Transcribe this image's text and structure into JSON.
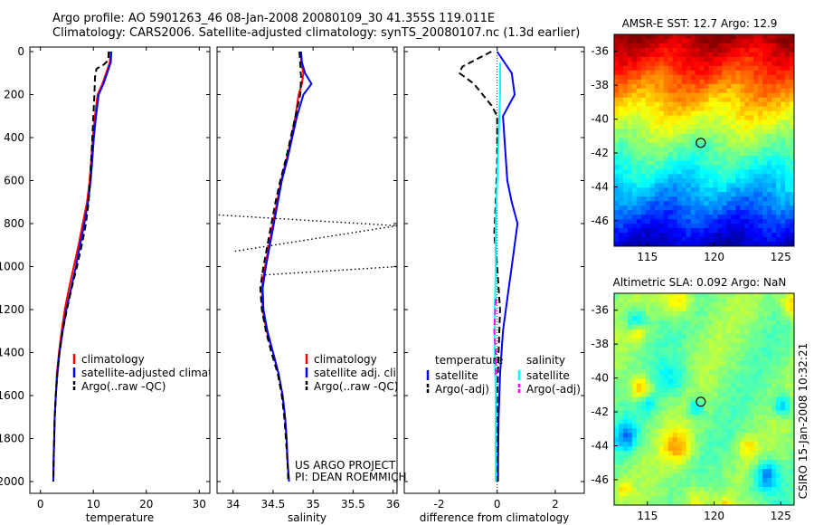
{
  "figure": {
    "title_line1": "Argo profile: AO 5901263_46 08-Jan-2008 20080109_30 41.355S 119.011E",
    "title_line2": "Climatology: CARS2006. Satellite-adjusted climatology: synTS_20080107.nc (1.3d earlier)",
    "side_label": "CSIRO 15-Jan-2008 10:32:21",
    "credit_line1": "US ARGO PROJECT",
    "credit_line2": "PI: DEAN ROEMMICH"
  },
  "colors": {
    "climatology": "#ff0000",
    "satellite": "#0000ff",
    "argo": "#000000",
    "satellite_diff_salinity": "#00ffff",
    "argo_diff_salinity": "#ff00ff"
  },
  "chart_data": [
    {
      "id": "temperature",
      "type": "line",
      "xlabel": "temperature",
      "xlim": [
        -2,
        32
      ],
      "xticks": [
        0,
        10,
        20,
        30
      ],
      "ylim": [
        0,
        2050
      ],
      "yticks": [
        0,
        200,
        400,
        600,
        800,
        1000,
        1200,
        1400,
        1600,
        1800,
        2000
      ],
      "reversed_y": true,
      "legend": {
        "placement": "lower-right",
        "entries": [
          "climatology",
          "satellite-adjusted climatology",
          "Argo(..raw -QC)"
        ]
      },
      "series": [
        {
          "name": "climatology",
          "color": "#ff0000",
          "dash": "solid",
          "points": [
            [
              13.2,
              0
            ],
            [
              13.1,
              50
            ],
            [
              12.4,
              100
            ],
            [
              11.7,
              150
            ],
            [
              10.8,
              200
            ],
            [
              10.3,
              300
            ],
            [
              9.9,
              400
            ],
            [
              9.6,
              500
            ],
            [
              9.3,
              600
            ],
            [
              8.8,
              700
            ],
            [
              8.0,
              800
            ],
            [
              7.2,
              900
            ],
            [
              6.3,
              1000
            ],
            [
              5.4,
              1100
            ],
            [
              4.6,
              1200
            ],
            [
              4.0,
              1300
            ],
            [
              3.5,
              1400
            ],
            [
              3.1,
              1500
            ],
            [
              2.9,
              1600
            ],
            [
              2.7,
              1700
            ],
            [
              2.6,
              1800
            ],
            [
              2.5,
              1900
            ],
            [
              2.45,
              2000
            ]
          ]
        },
        {
          "name": "satellite-adjusted climatology",
          "color": "#0000ff",
          "dash": "solid",
          "points": [
            [
              13.4,
              0
            ],
            [
              13.3,
              50
            ],
            [
              12.6,
              100
            ],
            [
              11.9,
              150
            ],
            [
              11.0,
              200
            ],
            [
              10.5,
              300
            ],
            [
              10.1,
              400
            ],
            [
              9.8,
              500
            ],
            [
              9.5,
              600
            ],
            [
              9.0,
              700
            ],
            [
              8.3,
              800
            ],
            [
              7.5,
              900
            ],
            [
              6.7,
              1000
            ],
            [
              5.8,
              1100
            ],
            [
              4.9,
              1200
            ],
            [
              4.2,
              1300
            ],
            [
              3.6,
              1400
            ],
            [
              3.2,
              1500
            ],
            [
              2.9,
              1600
            ],
            [
              2.7,
              1700
            ],
            [
              2.6,
              1800
            ],
            [
              2.5,
              1900
            ],
            [
              2.45,
              2000
            ]
          ]
        },
        {
          "name": "Argo(..raw -QC)",
          "color": "#000000",
          "dash": "dashed",
          "points": [
            [
              12.9,
              0
            ],
            [
              12.8,
              40
            ],
            [
              12.0,
              60
            ],
            [
              10.6,
              80
            ],
            [
              10.3,
              120
            ],
            [
              10.2,
              200
            ],
            [
              10.0,
              300
            ],
            [
              9.8,
              400
            ],
            [
              9.6,
              500
            ],
            [
              9.4,
              600
            ],
            [
              9.1,
              700
            ],
            [
              8.6,
              800
            ],
            [
              7.8,
              900
            ],
            [
              6.9,
              1000
            ],
            [
              5.9,
              1100
            ],
            [
              5.0,
              1200
            ],
            [
              4.2,
              1300
            ],
            [
              3.6,
              1400
            ],
            [
              3.2,
              1500
            ],
            [
              2.9,
              1600
            ],
            [
              2.7,
              1700
            ],
            [
              2.6,
              1800
            ],
            [
              2.5,
              1900
            ],
            [
              2.45,
              2000
            ]
          ]
        }
      ]
    },
    {
      "id": "salinity",
      "type": "line",
      "xlabel": "salinity",
      "xlim": [
        33.8,
        36.05
      ],
      "xticks": [
        34,
        34.5,
        35,
        35.5,
        36
      ],
      "ylim": [
        0,
        2050
      ],
      "reversed_y": true,
      "legend": {
        "placement": "lower-right",
        "entries": [
          "climatology",
          "satellite adj. clim.",
          "Argo(..raw -QC)"
        ]
      },
      "series": [
        {
          "name": "climatology",
          "color": "#ff0000",
          "dash": "solid",
          "points": [
            [
              34.85,
              0
            ],
            [
              34.85,
              50
            ],
            [
              34.88,
              100
            ],
            [
              34.86,
              150
            ],
            [
              34.82,
              200
            ],
            [
              34.78,
              300
            ],
            [
              34.73,
              400
            ],
            [
              34.67,
              500
            ],
            [
              34.6,
              600
            ],
            [
              34.55,
              700
            ],
            [
              34.5,
              800
            ],
            [
              34.45,
              900
            ],
            [
              34.4,
              1000
            ],
            [
              34.36,
              1100
            ],
            [
              34.37,
              1200
            ],
            [
              34.42,
              1300
            ],
            [
              34.5,
              1400
            ],
            [
              34.57,
              1500
            ],
            [
              34.62,
              1600
            ],
            [
              34.65,
              1700
            ],
            [
              34.67,
              1800
            ],
            [
              34.68,
              1900
            ],
            [
              34.7,
              2000
            ]
          ]
        },
        {
          "name": "satellite adj. clim.",
          "color": "#0000ff",
          "dash": "solid",
          "points": [
            [
              34.85,
              0
            ],
            [
              34.86,
              50
            ],
            [
              34.9,
              100
            ],
            [
              34.98,
              150
            ],
            [
              34.88,
              200
            ],
            [
              34.8,
              300
            ],
            [
              34.74,
              400
            ],
            [
              34.68,
              500
            ],
            [
              34.61,
              600
            ],
            [
              34.56,
              700
            ],
            [
              34.51,
              800
            ],
            [
              34.46,
              900
            ],
            [
              34.41,
              1000
            ],
            [
              34.37,
              1100
            ],
            [
              34.38,
              1200
            ],
            [
              34.43,
              1300
            ],
            [
              34.5,
              1400
            ],
            [
              34.57,
              1500
            ],
            [
              34.62,
              1600
            ],
            [
              34.65,
              1700
            ],
            [
              34.67,
              1800
            ],
            [
              34.68,
              1900
            ],
            [
              34.7,
              2000
            ]
          ]
        },
        {
          "name": "Argo(..raw -QC)",
          "color": "#000000",
          "dash": "dashed",
          "points": [
            [
              34.83,
              0
            ],
            [
              34.84,
              60
            ],
            [
              34.85,
              120
            ],
            [
              34.84,
              200
            ],
            [
              34.78,
              300
            ],
            [
              34.72,
              400
            ],
            [
              34.66,
              500
            ],
            [
              34.59,
              600
            ],
            [
              34.53,
              700
            ],
            [
              34.48,
              800
            ],
            [
              34.43,
              900
            ],
            [
              34.38,
              1000
            ],
            [
              34.34,
              1100
            ],
            [
              34.36,
              1200
            ],
            [
              34.41,
              1300
            ],
            [
              34.48,
              1400
            ],
            [
              34.56,
              1500
            ],
            [
              34.61,
              1600
            ],
            [
              34.64,
              1700
            ],
            [
              34.66,
              1800
            ],
            [
              34.68,
              1900
            ],
            [
              34.69,
              2000
            ]
          ]
        },
        {
          "name": "",
          "color": "#000000",
          "dash": "dotted",
          "points": [
            [
              33.82,
              760
            ],
            [
              36.05,
              810
            ],
            [
              36.05,
              810
            ],
            [
              34.0,
              930
            ],
            [
              36.05,
              900
            ],
            [
              36.05,
              900
            ],
            [
              34.35,
              1040
            ],
            [
              36.05,
              1000
            ]
          ]
        }
      ]
    },
    {
      "id": "difference",
      "type": "line",
      "xlabel": "difference from climatology",
      "xlim": [
        -3.2,
        3
      ],
      "xticks": [
        -2,
        0,
        2
      ],
      "ylim": [
        0,
        2050
      ],
      "reversed_y": true,
      "legend": {
        "placement": "lower-middle",
        "columns": [
          {
            "header": "temperature",
            "entries": [
              "satellite",
              "Argo(-adj)"
            ]
          },
          {
            "header": "salinity",
            "entries": [
              "satellite",
              "Argo(-adj)"
            ]
          }
        ]
      },
      "series": [
        {
          "name": "temperature satellite",
          "color": "#0000ff",
          "dash": "solid",
          "points": [
            [
              0,
              0
            ],
            [
              0.2,
              40
            ],
            [
              0.5,
              100
            ],
            [
              0.6,
              200
            ],
            [
              0.2,
              300
            ],
            [
              0.25,
              400
            ],
            [
              0.3,
              500
            ],
            [
              0.35,
              600
            ],
            [
              0.5,
              700
            ],
            [
              0.7,
              800
            ],
            [
              0.6,
              900
            ],
            [
              0.5,
              1000
            ],
            [
              0.4,
              1100
            ],
            [
              0.3,
              1200
            ],
            [
              0.2,
              1300
            ],
            [
              0.15,
              1400
            ],
            [
              0.1,
              1500
            ],
            [
              0.05,
              1700
            ],
            [
              0.03,
              1900
            ],
            [
              0.03,
              2000
            ]
          ]
        },
        {
          "name": "temperature Argo(-adj)",
          "color": "#000000",
          "dash": "dashed",
          "points": [
            [
              -0.2,
              0
            ],
            [
              -1.2,
              70
            ],
            [
              -1.3,
              100
            ],
            [
              -0.8,
              150
            ],
            [
              -0.2,
              250
            ],
            [
              0,
              300
            ],
            [
              0,
              400
            ],
            [
              0,
              500
            ],
            [
              -0.05,
              700
            ],
            [
              -0.1,
              850
            ],
            [
              0,
              1000
            ],
            [
              0.1,
              1200
            ],
            [
              0.05,
              1400
            ],
            [
              0,
              1600
            ],
            [
              0,
              2000
            ]
          ]
        },
        {
          "name": "salinity satellite",
          "color": "#00ffff",
          "dash": "solid",
          "points": [
            [
              0.1,
              50
            ],
            [
              0.1,
              200
            ],
            [
              0.05,
              400
            ],
            [
              0.0,
              600
            ],
            [
              -0.05,
              800
            ],
            [
              -0.05,
              1000
            ],
            [
              -0.08,
              1200
            ],
            [
              -0.08,
              1400
            ],
            [
              -0.05,
              1600
            ],
            [
              -0.05,
              1800
            ],
            [
              -0.05,
              2000
            ]
          ]
        },
        {
          "name": "salinity Argo(-adj)",
          "color": "#ff00ff",
          "dash": "dashed",
          "points": [
            [
              -0.05,
              1150
            ],
            [
              -0.1,
              1300
            ],
            [
              -0.05,
              1400
            ],
            [
              -0.05,
              1520
            ]
          ]
        }
      ]
    },
    {
      "id": "sst_map",
      "type": "heatmap",
      "title": "AMSR-E SST: 12.7 Argo: 12.9",
      "xlim": [
        112.5,
        126
      ],
      "ylim": [
        -47.5,
        -35
      ],
      "xticks": [
        115,
        120,
        125
      ],
      "yticks": [
        -36,
        -38,
        -40,
        -42,
        -44,
        -46
      ],
      "marker": {
        "lon": 119,
        "lat": -41.4
      },
      "colormap": "jet",
      "field": "north-warm to south-cold SST gradient"
    },
    {
      "id": "sla_map",
      "type": "heatmap",
      "title": "Altimetric SLA: 0.092 Argo: NaN",
      "xlim": [
        112.5,
        126
      ],
      "ylim": [
        -47.5,
        -35
      ],
      "xticks": [
        115,
        120,
        125
      ],
      "yticks": [
        -36,
        -38,
        -40,
        -42,
        -44,
        -46
      ],
      "marker": {
        "lon": 119,
        "lat": -41.4
      },
      "colormap": "jet",
      "field": "mostly green sea level anomaly with scattered yellow and cyan eddies"
    }
  ]
}
